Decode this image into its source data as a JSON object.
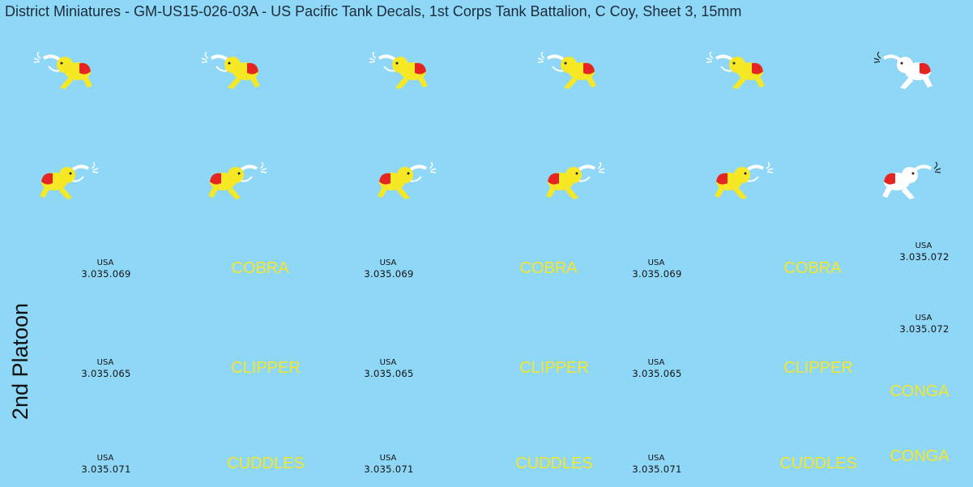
{
  "title": "District Miniatures - GM-US15-026-03A - US Pacific Tank Decals, 1st Corps Tank Battalion, C Coy, Sheet 3, 15mm",
  "side_label": "2nd Platoon",
  "rows": [
    {
      "blocks": [
        {
          "country": "USA",
          "serial": "3.035.069",
          "name": "COBRA"
        },
        {
          "country": "USA",
          "serial": "3.035.069",
          "name": "COBRA"
        },
        {
          "country": "USA",
          "serial": "3.035.069",
          "name": "COBRA"
        }
      ]
    },
    {
      "blocks": [
        {
          "country": "USA",
          "serial": "3.035.065",
          "name": "CLIPPER"
        },
        {
          "country": "USA",
          "serial": "3.035.065",
          "name": "CLIPPER"
        },
        {
          "country": "USA",
          "serial": "3.035.065",
          "name": "CLIPPER"
        }
      ]
    },
    {
      "blocks": [
        {
          "country": "USA",
          "serial": "3.035.071",
          "name": "CUDDLES"
        },
        {
          "country": "USA",
          "serial": "3.035.071",
          "name": "CUDDLES"
        },
        {
          "country": "USA",
          "serial": "3.035.071",
          "name": "CUDDLES"
        }
      ]
    }
  ],
  "extra_serials": [
    {
      "country": "USA",
      "serial": "3.035.072"
    },
    {
      "country": "USA",
      "serial": "3.035.072"
    }
  ],
  "extra_names": [
    "CONGA",
    "CONGA"
  ]
}
